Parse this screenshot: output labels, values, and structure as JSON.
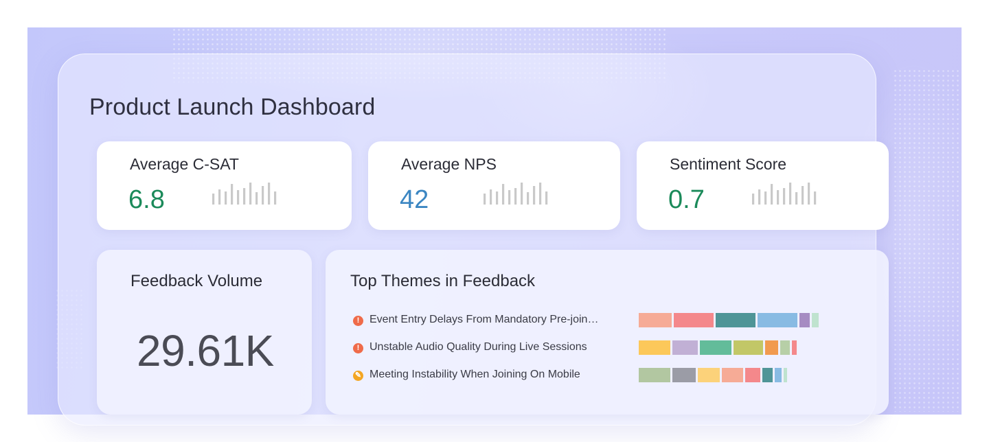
{
  "dashboard": {
    "title": "Product Launch Dashboard"
  },
  "kpis": [
    {
      "label": "Average C-SAT",
      "value": "6.8",
      "color": "#1b8a5a"
    },
    {
      "label": "Average NPS",
      "value": "42",
      "color": "#3b86c2"
    },
    {
      "label": "Sentiment Score",
      "value": "0.7",
      "color": "#1b8a5a"
    }
  ],
  "sparkline_relative_heights": [
    0.5,
    0.7,
    0.6,
    0.95,
    0.65,
    0.75,
    1.0,
    0.55,
    0.85,
    1.0,
    0.6
  ],
  "feedback_volume": {
    "label": "Feedback Volume",
    "value": "29.61K"
  },
  "top_themes": {
    "title": "Top Themes in Feedback",
    "items": [
      {
        "label": "Event Entry Delays From Mandatory Pre-join…",
        "icon": "alert-icon",
        "icon_glyph": "!",
        "icon_color": "#ef6b4a",
        "segments": [
          {
            "share": 0.14,
            "color": "#f6ab96"
          },
          {
            "share": 0.17,
            "color": "#f4888b"
          },
          {
            "share": 0.17,
            "color": "#4f9597"
          },
          {
            "share": 0.17,
            "color": "#88bbe3"
          },
          {
            "share": 0.045,
            "color": "#a68cc2"
          },
          {
            "share": 0.03,
            "color": "#bfe3cf"
          }
        ]
      },
      {
        "label": "Unstable Audio Quality During Live Sessions",
        "icon": "alert-icon",
        "icon_glyph": "!",
        "icon_color": "#ef6b4a",
        "segments": [
          {
            "share": 0.135,
            "color": "#fcc85a"
          },
          {
            "share": 0.11,
            "color": "#c1b0d5"
          },
          {
            "share": 0.135,
            "color": "#63bc9a"
          },
          {
            "share": 0.125,
            "color": "#c2c767"
          },
          {
            "share": 0.055,
            "color": "#f19a4f"
          },
          {
            "share": 0.04,
            "color": "#b7cfa7"
          },
          {
            "share": 0.02,
            "color": "#f4888b"
          }
        ]
      },
      {
        "label": "Meeting Instability When Joining On Mobile",
        "icon": "wrench-icon",
        "icon_glyph": "✎",
        "icon_color": "#f3a623",
        "segments": [
          {
            "share": 0.135,
            "color": "#b2c7a1"
          },
          {
            "share": 0.1,
            "color": "#9b9ca6"
          },
          {
            "share": 0.095,
            "color": "#fcd27a"
          },
          {
            "share": 0.09,
            "color": "#f6ab96"
          },
          {
            "share": 0.065,
            "color": "#f4888b"
          },
          {
            "share": 0.045,
            "color": "#4f9597"
          },
          {
            "share": 0.03,
            "color": "#88bbe3"
          },
          {
            "share": 0.015,
            "color": "#bfe3cf"
          }
        ]
      }
    ]
  }
}
